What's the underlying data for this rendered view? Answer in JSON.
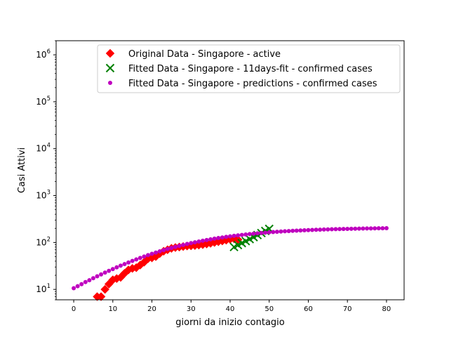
{
  "chart_data": {
    "type": "scatter",
    "title": "",
    "xlabel": "giorni da inizio contagio",
    "ylabel": "Casi Attivi",
    "xlim": [
      -4.5,
      84.5
    ],
    "ylim": [
      6,
      2000000
    ],
    "yscale": "log",
    "grid": false,
    "legend_position": "top-right",
    "x_ticks": [
      0,
      10,
      20,
      30,
      40,
      50,
      60,
      70,
      80
    ],
    "x_tick_labels": [
      "0",
      "10",
      "20",
      "30",
      "40",
      "50",
      "60",
      "70",
      "80"
    ],
    "y_ticks": [
      10,
      100,
      1000,
      10000,
      100000,
      1000000
    ],
    "y_tick_bases": [
      "10",
      "10",
      "10",
      "10",
      "10",
      "10"
    ],
    "y_tick_exps": [
      "1",
      "2",
      "3",
      "4",
      "5",
      "6"
    ],
    "series": [
      {
        "name": "Original Data - Singapore - active",
        "marker": "diamond",
        "color": "#ff0000",
        "x": [
          6,
          7,
          8,
          9,
          10,
          11,
          12,
          13,
          14,
          15,
          16,
          17,
          18,
          19,
          20,
          21,
          22,
          23,
          24,
          25,
          26,
          27,
          28,
          29,
          30,
          31,
          32,
          33,
          34,
          35,
          36,
          37,
          38,
          39,
          40,
          41,
          42
        ],
        "y": [
          7,
          7,
          10,
          13,
          16,
          17,
          18,
          22,
          26,
          28,
          29,
          33,
          38,
          45,
          47,
          50,
          58,
          65,
          70,
          75,
          78,
          80,
          82,
          84,
          85,
          86,
          88,
          90,
          93,
          96,
          100,
          104,
          108,
          112,
          117,
          120,
          115
        ]
      },
      {
        "name": "Fitted Data - Singapore -  11days-fit - confirmed cases",
        "marker": "x",
        "color": "#008000",
        "x": [
          41,
          42,
          43,
          44,
          45,
          46,
          47,
          48,
          49,
          50
        ],
        "y": [
          80,
          88,
          97,
          107,
          118,
          130,
          144,
          159,
          176,
          195
        ]
      },
      {
        "name": "Fitted Data - Singapore - predictions - confirmed cases",
        "marker": "dot",
        "color": "#bf00bf",
        "x": [
          0,
          1,
          2,
          3,
          4,
          5,
          6,
          7,
          8,
          9,
          10,
          11,
          12,
          13,
          14,
          15,
          16,
          17,
          18,
          19,
          20,
          21,
          22,
          23,
          24,
          25,
          26,
          27,
          28,
          29,
          30,
          31,
          32,
          33,
          34,
          35,
          36,
          37,
          38,
          39,
          40,
          41,
          42,
          43,
          44,
          45,
          46,
          47,
          48,
          49,
          50,
          51,
          52,
          53,
          54,
          55,
          56,
          57,
          58,
          59,
          60,
          61,
          62,
          63,
          64,
          65,
          66,
          67,
          68,
          69,
          70,
          71,
          72,
          73,
          74,
          75,
          76,
          77,
          78,
          79,
          80
        ],
        "y": [
          10.6,
          11.7,
          12.9,
          14.3,
          15.7,
          17.3,
          19.0,
          20.8,
          22.8,
          24.9,
          27.1,
          29.5,
          32.0,
          34.7,
          37.5,
          40.5,
          43.6,
          46.9,
          50.2,
          53.7,
          57.3,
          61.0,
          64.8,
          68.7,
          72.6,
          76.6,
          80.6,
          84.6,
          88.7,
          92.8,
          96.8,
          100.9,
          104.9,
          108.9,
          112.9,
          116.7,
          120.6,
          124.3,
          128.0,
          131.6,
          135.1,
          138.5,
          141.8,
          145.0,
          148.1,
          151.1,
          154.0,
          156.8,
          159.4,
          162.0,
          164.4,
          166.8,
          169.0,
          171.2,
          173.2,
          175.2,
          177.0,
          178.8,
          180.5,
          182.1,
          183.6,
          185.0,
          186.4,
          187.7,
          188.9,
          190.1,
          191.2,
          192.2,
          193.2,
          194.1,
          195.0,
          195.9,
          196.6,
          197.4,
          198.1,
          198.8,
          199.4,
          200.0,
          200.5,
          201.1,
          201.6
        ]
      }
    ]
  }
}
